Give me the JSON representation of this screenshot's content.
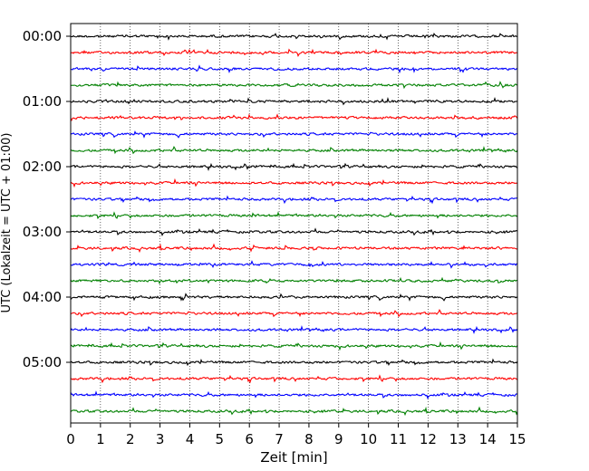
{
  "chart_data": {
    "type": "line",
    "title": "",
    "xlabel": "Zeit  [min]",
    "ylabel": "UTC (Lokalzeit = UTC + 01:00)",
    "xlim": [
      0,
      15
    ],
    "x_ticks": [
      "0",
      "1",
      "2",
      "3",
      "4",
      "5",
      "6",
      "7",
      "8",
      "9",
      "10",
      "11",
      "12",
      "13",
      "14",
      "15"
    ],
    "y_ticks": [
      "00:00",
      "01:00",
      "02:00",
      "03:00",
      "04:00",
      "05:00"
    ],
    "traces_per_hour": 4,
    "trace_count": 24,
    "trace_minutes": 15,
    "trace_colors": [
      "#000000",
      "#ff0000",
      "#0000ff",
      "#008000"
    ],
    "grid": "vertical dotted at each minute",
    "legend": "none"
  }
}
